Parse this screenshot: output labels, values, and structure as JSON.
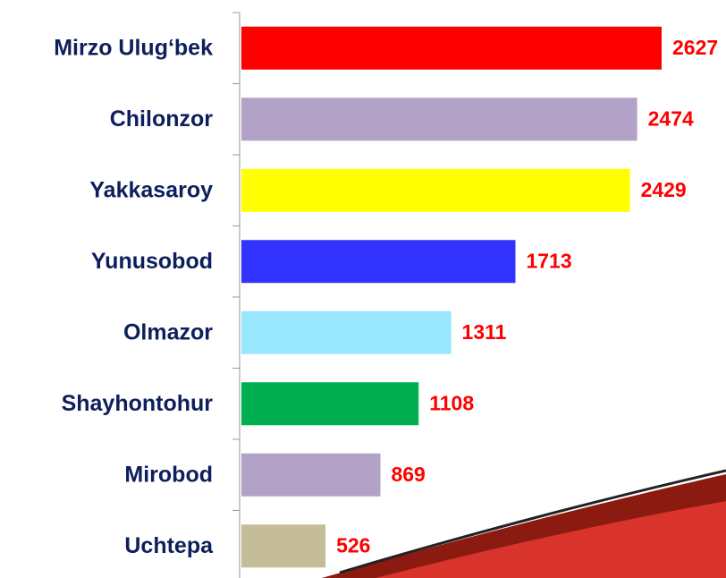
{
  "chart_data": {
    "type": "barh",
    "categories": [
      "Mirzo Ulug‘bek",
      "Chilonzor",
      "Yakkasaroy",
      "Yunusobod",
      "Olmazor",
      "Shayhontohur",
      "Mirobod",
      "Uchtepa"
    ],
    "values": [
      2627,
      2474,
      2429,
      1713,
      1311,
      1108,
      869,
      526
    ],
    "colors": [
      "#ff0000",
      "#b3a2c7",
      "#ffff00",
      "#3333ff",
      "#99e6ff",
      "#00b050",
      "#b3a2c7",
      "#c4bd97"
    ]
  }
}
